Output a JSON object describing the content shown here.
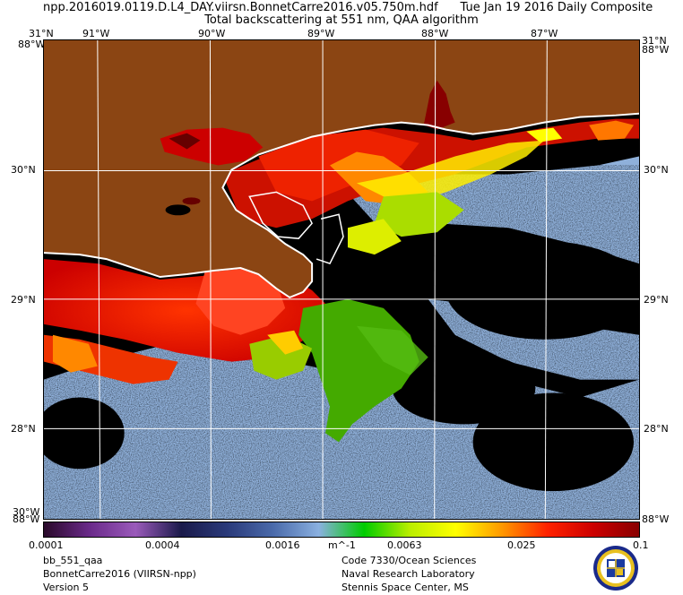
{
  "header": {
    "line1": "npp.2016019.0119.D.L4_DAY.viirsn.BonnetCarre2016.v05.750m.hdf      Tue Jan 19 2016 Daily Composite",
    "line2": "Total backscattering at 551 nm, QAA algorithm"
  },
  "map": {
    "lon_labels": [
      "91°W",
      "90°W",
      "89°W",
      "88°W",
      "87°W"
    ],
    "corner_top_left": "31°N",
    "corner_top_right": "31°N",
    "lat_left": [
      "30°N",
      "29°N",
      "28°N"
    ],
    "lat_right": [
      "30°N",
      "29°N",
      "28°N"
    ],
    "edge_top_left": "88°W",
    "edge_top_right": "88°W",
    "edge_bottom_left": "88°W",
    "edge_bottom_right": "88°W",
    "edge_bottom_left2": "30°W",
    "colors": {
      "land": "#8b4513",
      "no_data": "#000000",
      "low_water": "#8fb0da",
      "coast": "#ffffff",
      "grid": "#ffffff"
    }
  },
  "colorbar": {
    "ticks": [
      "0.0001",
      "0.0004",
      "0.0016",
      "0.0063",
      "0.025",
      "0.1"
    ],
    "unit": "m^-1",
    "colors": [
      "#2a0a2a",
      "#6a2a8a",
      "#9a5aba",
      "#1a1a4a",
      "#2a3a7a",
      "#4a6aaa",
      "#8ab0e0",
      "#00cc00",
      "#bbee00",
      "#ffff00",
      "#ff9900",
      "#ff2200",
      "#cc0000",
      "#880000"
    ]
  },
  "footer": {
    "left": [
      "bb_551_qaa",
      "BonnetCarre2016 (VIIRSN-npp)",
      "Version 5"
    ],
    "right": [
      "Code 7330/Ocean Sciences",
      "Naval Research Laboratory",
      "Stennis Space Center, MS"
    ]
  }
}
